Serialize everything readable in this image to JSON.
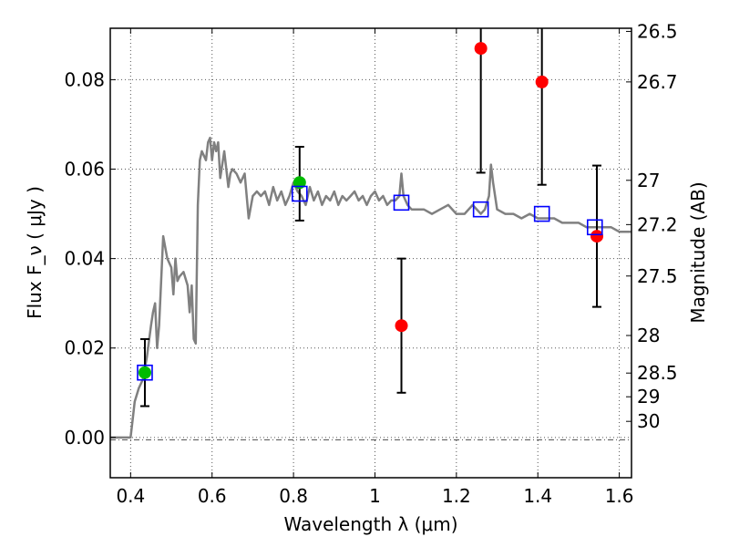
{
  "chart_data": {
    "type": "scatter",
    "xlabel": "Wavelength  λ (μm)",
    "ylabel": "Flux  F_ν  ( μJy )",
    "y2label": "Magnitude (AB)",
    "xlim": [
      0.35,
      1.63
    ],
    "ylim": [
      -0.009,
      0.0915
    ],
    "grid": true,
    "x_ticks": [
      {
        "value": 0.4,
        "label": "0.4"
      },
      {
        "value": 0.6,
        "label": "0.6"
      },
      {
        "value": 0.8,
        "label": "0.8"
      },
      {
        "value": 1.0,
        "label": "1"
      },
      {
        "value": 1.2,
        "label": "1.2"
      },
      {
        "value": 1.4,
        "label": "1.4"
      },
      {
        "value": 1.6,
        "label": "1.6"
      }
    ],
    "y_ticks": [
      {
        "value": 0.0,
        "label": "0.00"
      },
      {
        "value": 0.02,
        "label": "0.02"
      },
      {
        "value": 0.04,
        "label": "0.04"
      },
      {
        "value": 0.06,
        "label": "0.06"
      },
      {
        "value": 0.08,
        "label": "0.08"
      }
    ],
    "y2_ticks": [
      {
        "label": "26.5",
        "flux": 0.0908
      },
      {
        "label": "26.7",
        "flux": 0.0795
      },
      {
        "label": "27",
        "flux": 0.0575
      },
      {
        "label": "27.2",
        "flux": 0.0476
      },
      {
        "label": "27.5",
        "flux": 0.0361
      },
      {
        "label": "28",
        "flux": 0.0228
      },
      {
        "label": "28.5",
        "flux": 0.0144
      },
      {
        "label": "29",
        "flux": 0.0091
      },
      {
        "label": "30",
        "flux": 0.0036
      }
    ],
    "colors": {
      "model": "#808080",
      "synthetic": "#0000ff",
      "green_points": "#00bb00",
      "red_points": "#ff0000",
      "errorbar": "#000000",
      "grid": "#555555"
    },
    "series": [
      {
        "kind": "model_spectrum",
        "x": [
          0.35,
          0.4,
          0.405,
          0.41,
          0.42,
          0.43,
          0.44,
          0.45,
          0.455,
          0.46,
          0.465,
          0.47,
          0.48,
          0.49,
          0.5,
          0.505,
          0.51,
          0.515,
          0.52,
          0.53,
          0.54,
          0.545,
          0.55,
          0.555,
          0.56,
          0.565,
          0.57,
          0.575,
          0.58,
          0.585,
          0.59,
          0.595,
          0.6,
          0.605,
          0.61,
          0.615,
          0.62,
          0.63,
          0.64,
          0.645,
          0.65,
          0.66,
          0.67,
          0.68,
          0.69,
          0.7,
          0.71,
          0.72,
          0.73,
          0.74,
          0.75,
          0.76,
          0.77,
          0.78,
          0.79,
          0.8,
          0.81,
          0.82,
          0.83,
          0.84,
          0.85,
          0.86,
          0.87,
          0.88,
          0.89,
          0.9,
          0.91,
          0.92,
          0.93,
          0.94,
          0.95,
          0.96,
          0.97,
          0.98,
          0.99,
          1.0,
          1.01,
          1.02,
          1.03,
          1.04,
          1.05,
          1.06,
          1.065,
          1.07,
          1.08,
          1.09,
          1.1,
          1.12,
          1.14,
          1.16,
          1.18,
          1.2,
          1.22,
          1.24,
          1.26,
          1.27,
          1.28,
          1.285,
          1.29,
          1.3,
          1.32,
          1.34,
          1.36,
          1.38,
          1.4,
          1.42,
          1.44,
          1.46,
          1.48,
          1.5,
          1.52,
          1.54,
          1.56,
          1.58,
          1.6,
          1.63
        ],
        "y": [
          0.0,
          0.0,
          0.004,
          0.008,
          0.011,
          0.013,
          0.018,
          0.025,
          0.028,
          0.03,
          0.02,
          0.025,
          0.045,
          0.04,
          0.038,
          0.032,
          0.04,
          0.035,
          0.036,
          0.037,
          0.034,
          0.028,
          0.034,
          0.022,
          0.021,
          0.052,
          0.062,
          0.064,
          0.063,
          0.062,
          0.066,
          0.067,
          0.062,
          0.066,
          0.064,
          0.066,
          0.058,
          0.064,
          0.056,
          0.059,
          0.06,
          0.059,
          0.057,
          0.059,
          0.049,
          0.054,
          0.055,
          0.054,
          0.055,
          0.052,
          0.056,
          0.053,
          0.055,
          0.052,
          0.054,
          0.057,
          0.055,
          0.054,
          0.052,
          0.056,
          0.053,
          0.055,
          0.052,
          0.054,
          0.053,
          0.055,
          0.052,
          0.054,
          0.053,
          0.054,
          0.055,
          0.053,
          0.054,
          0.052,
          0.054,
          0.055,
          0.053,
          0.054,
          0.052,
          0.053,
          0.053,
          0.054,
          0.059,
          0.054,
          0.052,
          0.051,
          0.051,
          0.051,
          0.05,
          0.051,
          0.052,
          0.05,
          0.05,
          0.052,
          0.05,
          0.051,
          0.054,
          0.061,
          0.057,
          0.051,
          0.05,
          0.05,
          0.049,
          0.05,
          0.049,
          0.049,
          0.049,
          0.048,
          0.048,
          0.048,
          0.047,
          0.047,
          0.047,
          0.047,
          0.046,
          0.046
        ]
      },
      {
        "kind": "synthetic_photometry",
        "marker": "open-square",
        "x": [
          0.435,
          0.815,
          1.065,
          1.26,
          1.41,
          1.54
        ],
        "y": [
          0.0145,
          0.0545,
          0.0525,
          0.051,
          0.05,
          0.047
        ]
      },
      {
        "kind": "observed_detections",
        "marker": "filled-circle",
        "x": [
          0.435,
          0.815
        ],
        "y": [
          0.0145,
          0.057
        ],
        "yerr_low": [
          0.0075,
          0.0085
        ],
        "yerr_high": [
          0.0075,
          0.008
        ]
      },
      {
        "kind": "observed_other",
        "marker": "filled-circle",
        "x": [
          1.065,
          1.26,
          1.41,
          1.545
        ],
        "y": [
          0.025,
          0.087,
          0.0795,
          0.045
        ],
        "yerr_low": [
          0.015,
          0.0278,
          0.023,
          0.0158
        ],
        "yerr_high": [
          0.015,
          0.0278,
          0.023,
          0.0158
        ]
      }
    ]
  }
}
